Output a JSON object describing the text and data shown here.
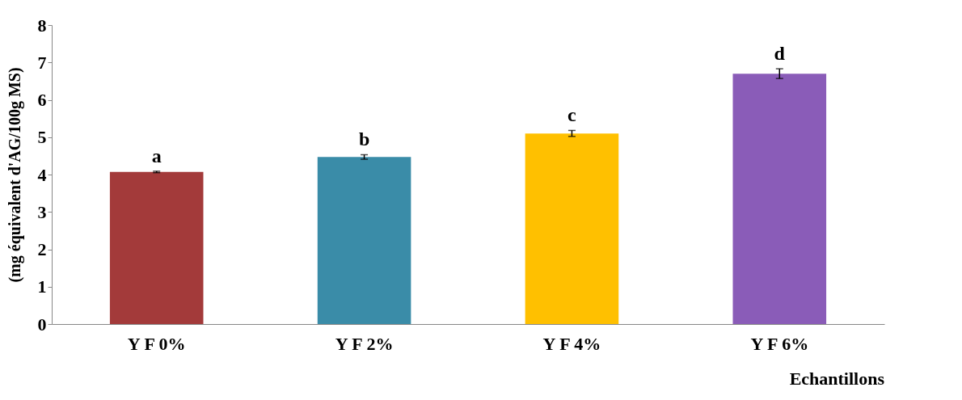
{
  "chart_data": {
    "type": "bar",
    "ylabel": "(mg équivalent d'AG/100g MS)",
    "xlabel": "Echantillons",
    "categories": [
      "Y F 0%",
      "Y F 2%",
      "Y F 4%",
      "Y F 6%"
    ],
    "values": [
      4.07,
      4.47,
      5.1,
      6.7
    ],
    "errors": [
      0.02,
      0.06,
      0.08,
      0.13
    ],
    "colors": [
      "#a33a3a",
      "#3a8ca8",
      "#ffc000",
      "#8a5cb8"
    ],
    "ylim": [
      0,
      8
    ],
    "yticks": [
      0,
      1,
      2,
      3,
      4,
      5,
      6,
      7,
      8
    ],
    "grid": false,
    "annotations": [
      "a",
      "b",
      "c",
      "d"
    ]
  }
}
